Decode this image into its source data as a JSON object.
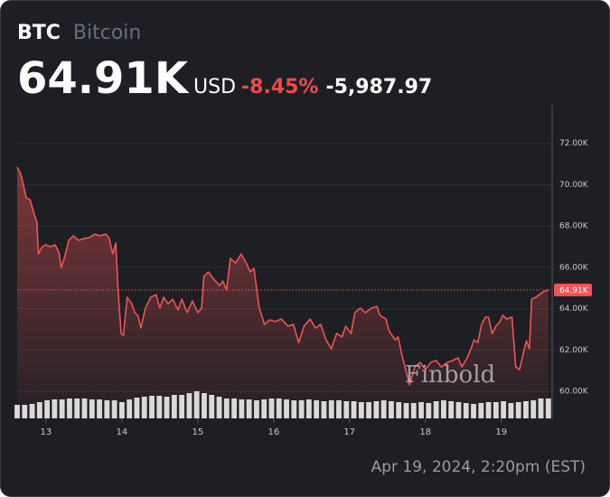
{
  "header": {
    "symbol": "BTC",
    "name": "Bitcoin",
    "price": "64.91K",
    "currency": "USD",
    "change_pct": "-8.45%",
    "change": "-5,987.97"
  },
  "timestamp": "Apr 19, 2024, 2:20pm (EST)",
  "watermark": "Finbold",
  "chart_data": {
    "type": "line",
    "color": "#f05454",
    "x": [
      12.62,
      12.67,
      12.74,
      12.79,
      12.83,
      12.88,
      12.9,
      12.95,
      13.0,
      13.06,
      13.12,
      13.17,
      13.2,
      13.24,
      13.3,
      13.36,
      13.43,
      13.5,
      13.57,
      13.64,
      13.71,
      13.79,
      13.83,
      13.88,
      13.92,
      13.95,
      13.99,
      14.02,
      14.07,
      14.13,
      14.17,
      14.21,
      14.25,
      14.31,
      14.38,
      14.45,
      14.5,
      14.55,
      14.61,
      14.67,
      14.74,
      14.79,
      14.86,
      14.93,
      15.0,
      15.05,
      15.08,
      15.14,
      15.21,
      15.29,
      15.33,
      15.38,
      15.43,
      15.5,
      15.57,
      15.64,
      15.69,
      15.74,
      15.81,
      15.88,
      15.95,
      16.02,
      16.1,
      16.19,
      16.26,
      16.33,
      16.4,
      16.48,
      16.55,
      16.62,
      16.69,
      16.76,
      16.83,
      16.9,
      16.95,
      17.02,
      17.07,
      17.14,
      17.21,
      17.29,
      17.36,
      17.4,
      17.48,
      17.52,
      17.6,
      17.64,
      17.69,
      17.74,
      17.79,
      17.86,
      17.93,
      18.0,
      18.07,
      18.14,
      18.21,
      18.29,
      18.36,
      18.43,
      18.48,
      18.55,
      18.6,
      18.64,
      18.69,
      18.74,
      18.79,
      18.83,
      18.88,
      18.93,
      18.98,
      19.02,
      19.07,
      19.14,
      19.19,
      19.24,
      19.29,
      19.33,
      19.37,
      19.4,
      19.45,
      19.5,
      19.55,
      19.62
    ],
    "values": [
      70850,
      70500,
      69360,
      69280,
      68750,
      68180,
      66650,
      67000,
      67090,
      67000,
      67090,
      66740,
      65990,
      66430,
      67310,
      67530,
      67310,
      67400,
      67440,
      67610,
      67530,
      67610,
      67440,
      66650,
      67180,
      64900,
      62800,
      62710,
      64550,
      64240,
      63810,
      63680,
      63060,
      64030,
      64550,
      64680,
      64030,
      64550,
      64240,
      64460,
      63940,
      64460,
      63810,
      64380,
      63810,
      64030,
      65560,
      65780,
      65430,
      65120,
      65340,
      64900,
      66430,
      66210,
      66650,
      66210,
      65780,
      65950,
      64030,
      63240,
      63460,
      63370,
      63500,
      63150,
      63240,
      62360,
      63150,
      63500,
      63060,
      63240,
      62490,
      62060,
      62800,
      62630,
      63150,
      62800,
      63810,
      64030,
      63810,
      64030,
      64110,
      63680,
      63500,
      62930,
      62490,
      62630,
      61750,
      61050,
      60310,
      61180,
      61400,
      61050,
      61400,
      61490,
      61180,
      61400,
      61490,
      61620,
      61180,
      61620,
      62060,
      62490,
      62360,
      63240,
      63590,
      63590,
      62800,
      63150,
      63370,
      63680,
      63500,
      63590,
      61180,
      61050,
      61840,
      62450,
      62060,
      64460,
      64550,
      64680,
      64810,
      64910
    ],
    "xlim": [
      12.62,
      19.67
    ],
    "xticks": [
      13,
      14,
      15,
      16,
      17,
      18,
      19
    ],
    "ylim": [
      58690,
      73870
    ],
    "yticks": [
      {
        "value": 60000,
        "label": "60.00K"
      },
      {
        "value": 62000,
        "label": "62.00K"
      },
      {
        "value": 64000,
        "label": "64.00K"
      },
      {
        "value": 66000,
        "label": "66.00K"
      },
      {
        "value": 68000,
        "label": "68.00K"
      },
      {
        "value": 70000,
        "label": "70.00K"
      },
      {
        "value": 72000,
        "label": "72.00K"
      }
    ],
    "grid": true,
    "last_price": {
      "value": 64910,
      "label": "64.91K"
    },
    "volume": {
      "color": "#d9d9dc",
      "values": [
        15,
        15,
        16,
        18,
        20,
        21,
        21,
        22,
        22,
        22,
        21,
        21,
        20,
        20,
        18,
        21,
        23,
        24,
        25,
        25,
        24,
        26,
        26,
        28,
        30,
        28,
        26,
        24,
        22,
        22,
        21,
        21,
        20,
        21,
        22,
        22,
        21,
        20,
        20,
        21,
        20,
        19,
        20,
        20,
        19,
        19,
        18,
        18,
        19,
        20,
        19,
        18,
        17,
        17,
        18,
        17,
        19,
        20,
        19,
        18,
        17,
        16,
        17,
        18,
        18,
        19,
        17,
        18,
        19,
        20,
        22,
        22
      ]
    }
  }
}
